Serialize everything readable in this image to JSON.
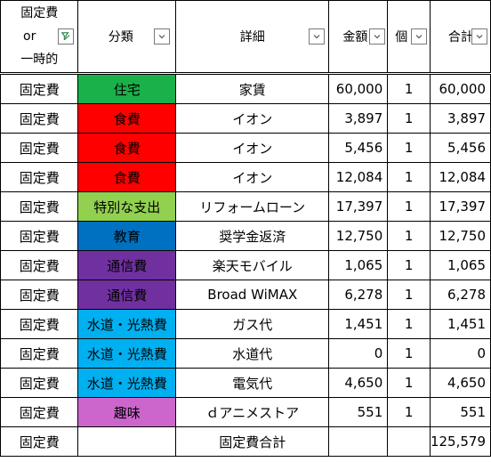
{
  "headers": {
    "type_lines": [
      "固定費",
      "or",
      "一時的"
    ],
    "category": "分類",
    "detail": "詳細",
    "amount": "金額",
    "qty": "個",
    "total": "合計"
  },
  "colors": {
    "住宅": "#1ab14a",
    "食費": "#ff0000",
    "特別な支出": "#92d050",
    "教育": "#0070c0",
    "通信費": "#7030a0",
    "水道・光熱費": "#00b0f0",
    "趣味": "#cc66cc"
  },
  "rows": [
    {
      "type": "固定費",
      "category": "住宅",
      "detail": "家賃",
      "amount": "60,000",
      "qty": "1",
      "total": "60,000"
    },
    {
      "type": "固定費",
      "category": "食費",
      "detail": "イオン",
      "amount": "3,897",
      "qty": "1",
      "total": "3,897"
    },
    {
      "type": "固定費",
      "category": "食費",
      "detail": "イオン",
      "amount": "5,456",
      "qty": "1",
      "total": "5,456"
    },
    {
      "type": "固定費",
      "category": "食費",
      "detail": "イオン",
      "amount": "12,084",
      "qty": "1",
      "total": "12,084"
    },
    {
      "type": "固定費",
      "category": "特別な支出",
      "detail": "リフォームローン",
      "amount": "17,397",
      "qty": "1",
      "total": "17,397"
    },
    {
      "type": "固定費",
      "category": "教育",
      "detail": "奨学金返済",
      "amount": "12,750",
      "qty": "1",
      "total": "12,750"
    },
    {
      "type": "固定費",
      "category": "通信費",
      "detail": "楽天モバイル",
      "amount": "1,065",
      "qty": "1",
      "total": "1,065"
    },
    {
      "type": "固定費",
      "category": "通信費",
      "detail": "Broad WiMAX",
      "amount": "6,278",
      "qty": "1",
      "total": "6,278"
    },
    {
      "type": "固定費",
      "category": "水道・光熱費",
      "detail": "ガス代",
      "amount": "1,451",
      "qty": "1",
      "total": "1,451"
    },
    {
      "type": "固定費",
      "category": "水道・光熱費",
      "detail": "水道代",
      "amount": "0",
      "qty": "1",
      "total": "0"
    },
    {
      "type": "固定費",
      "category": "水道・光熱費",
      "detail": "電気代",
      "amount": "4,650",
      "qty": "1",
      "total": "4,650"
    },
    {
      "type": "固定費",
      "category": "趣味",
      "detail": "ｄアニメストア",
      "amount": "551",
      "qty": "1",
      "total": "551"
    }
  ],
  "summary": {
    "type": "固定費",
    "detail": "固定費合計",
    "total": "125,579"
  }
}
